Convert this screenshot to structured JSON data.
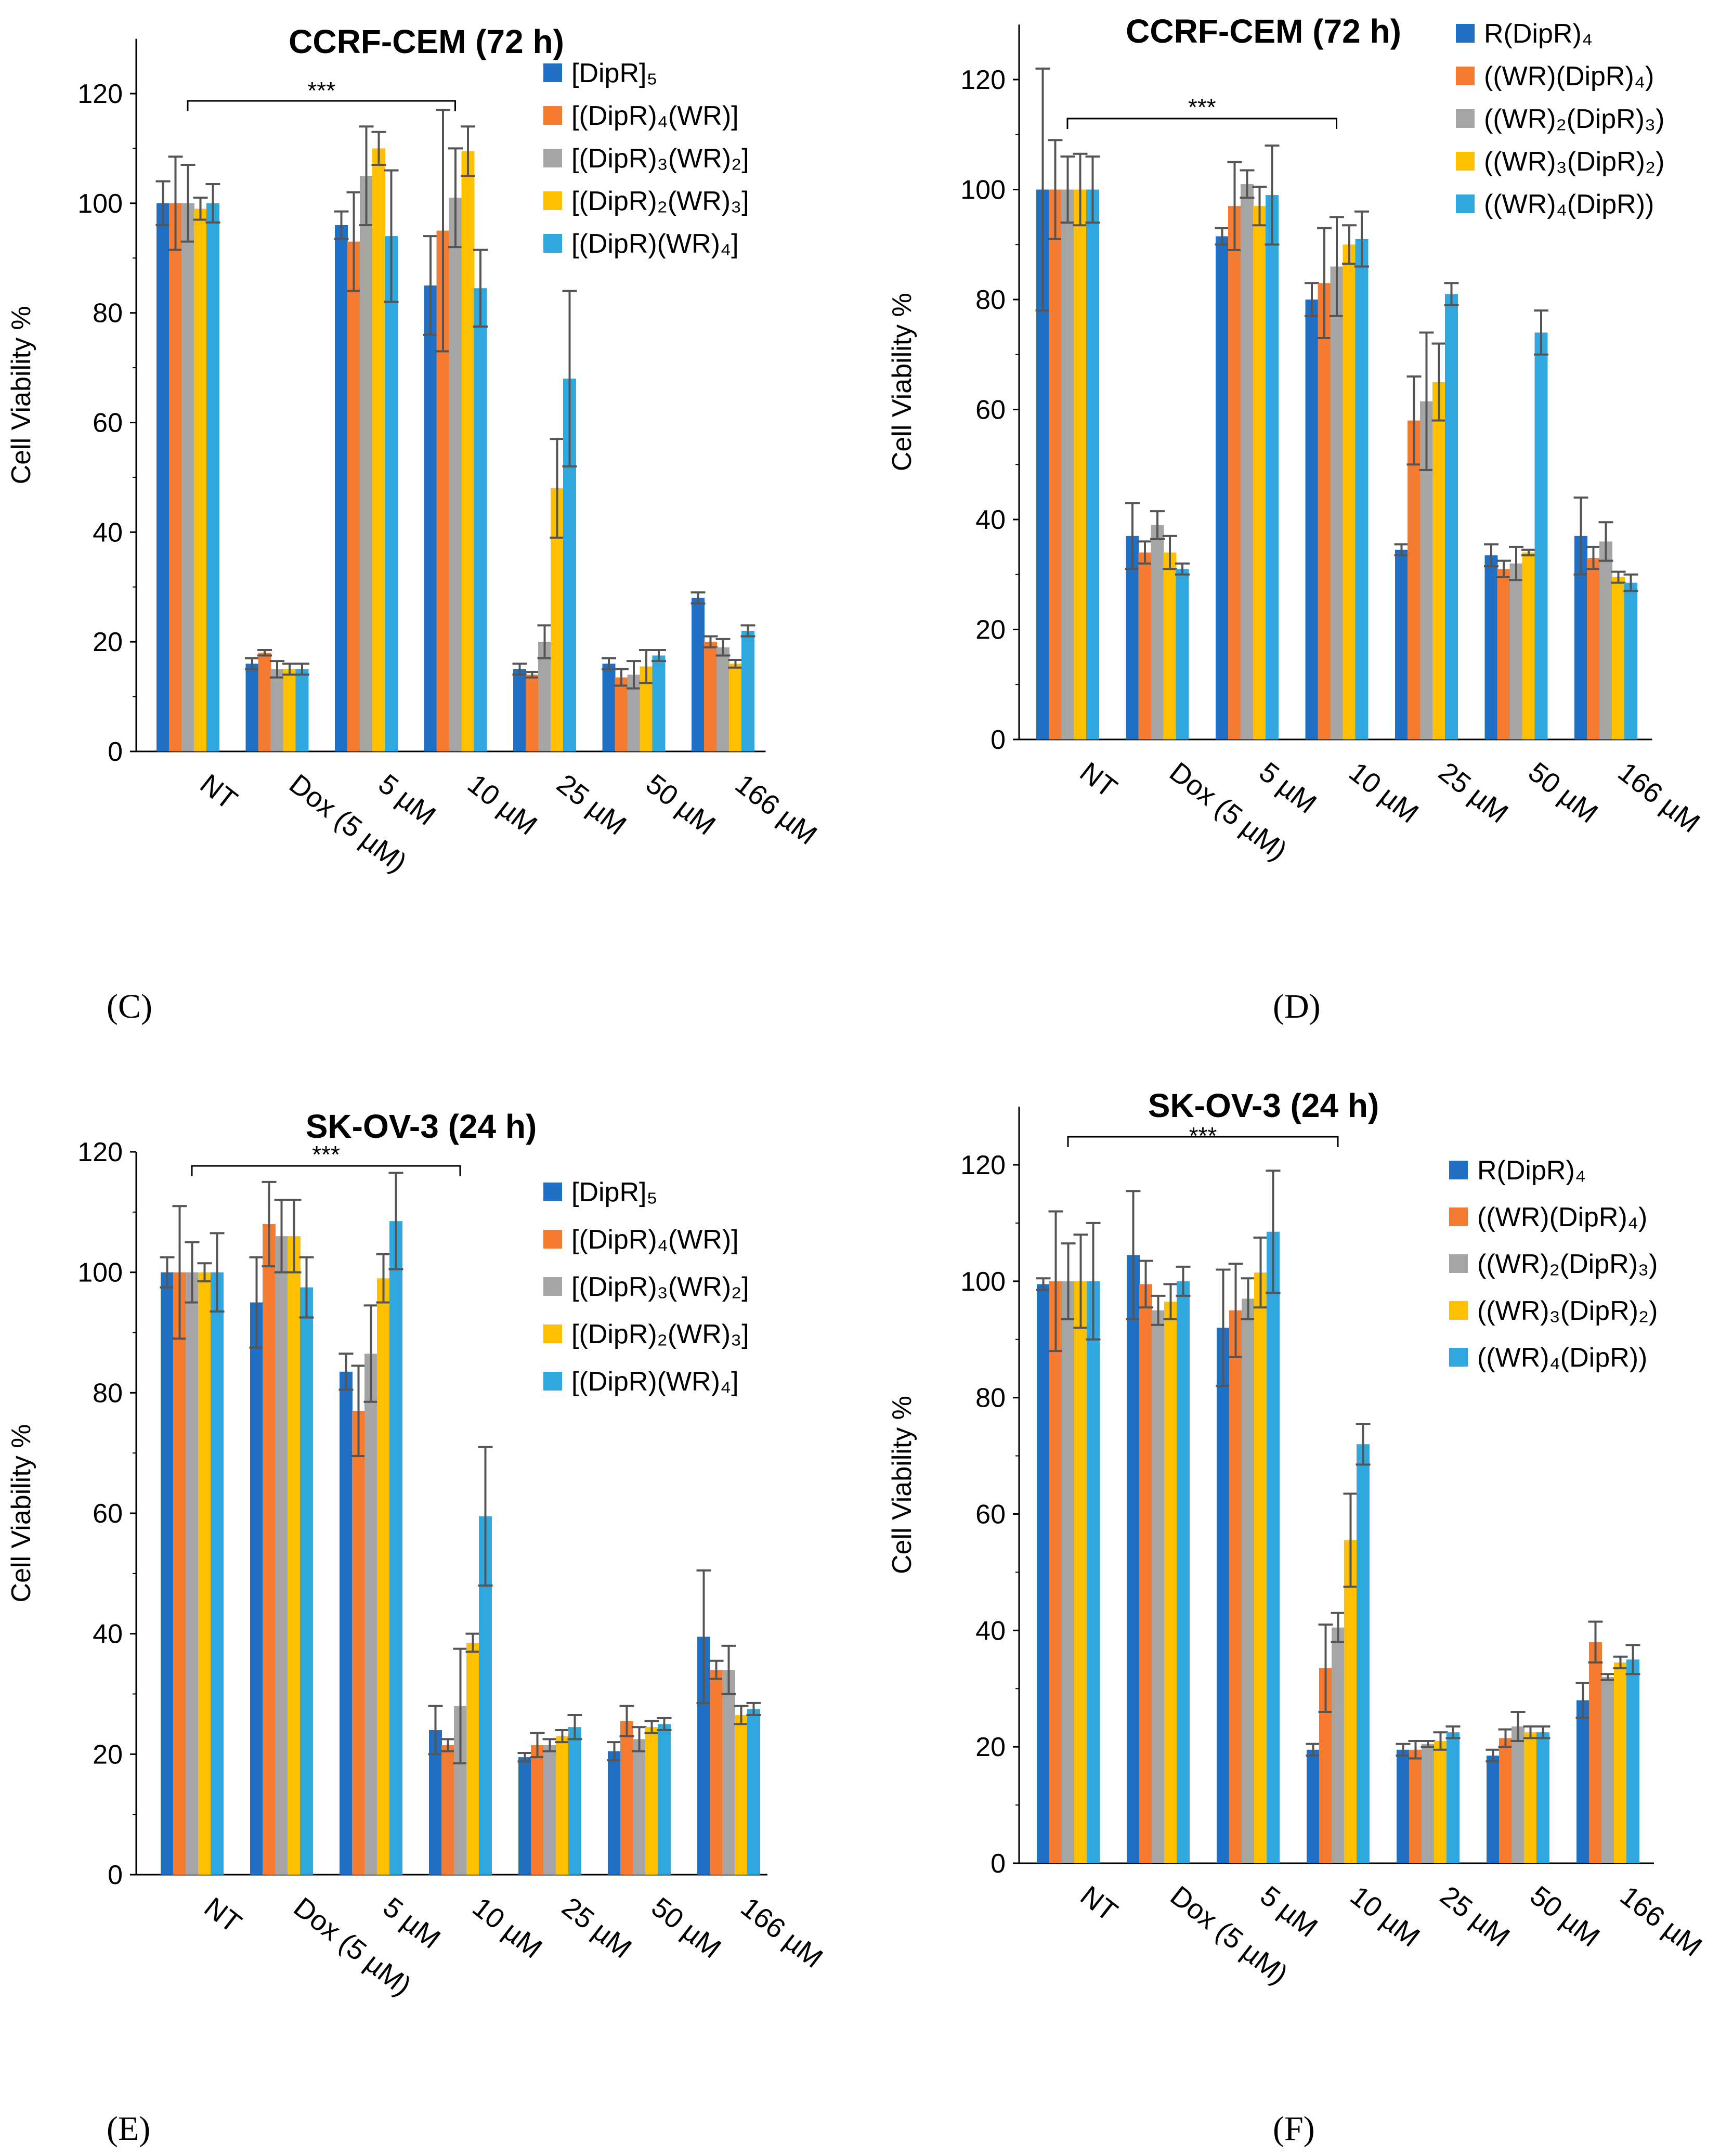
{
  "panels": [
    {
      "letter": "(C)",
      "title": "CCRF-CEM (72 h)"
    },
    {
      "letter": "(D)",
      "title": "CCRF-CEM (72 h)"
    },
    {
      "letter": "(E)",
      "title": "SK-OV-3 (24 h)"
    },
    {
      "letter": "(F)",
      "title": "SK-OV-3 (24 h)"
    }
  ],
  "colors": [
    "#1f6fc5",
    "#f47b30",
    "#a5a5a5",
    "#ffc000",
    "#2ea8df"
  ],
  "chart_data": [
    {
      "type": "bar",
      "title": "CCRF-CEM (72 h)",
      "ylabel": "Cell Viability %",
      "xlabel": "",
      "ylim": [
        0,
        130
      ],
      "yticks": [
        0,
        20,
        40,
        60,
        80,
        100,
        120
      ],
      "categories": [
        "NT",
        "Dox (5 µM)",
        "5 µM",
        "10 µM",
        "25 µM",
        "50 µM",
        "166 µM"
      ],
      "significance": {
        "label": "***",
        "from": "NT",
        "to": "10 µM"
      },
      "legend_position": "top-right",
      "series": [
        {
          "name": "[DipR]₅",
          "values": [
            100,
            16,
            96,
            85,
            15,
            16,
            28
          ],
          "errors": [
            4,
            1,
            2.5,
            9,
            1,
            1,
            1
          ]
        },
        {
          "name": "[(DipR)₄(WR)]",
          "values": [
            100,
            18,
            93,
            95,
            14,
            13.5,
            20
          ],
          "errors": [
            8.5,
            0.5,
            9,
            22,
            0.5,
            1.5,
            1
          ]
        },
        {
          "name": "[(DipR)₃(WR)₂]",
          "values": [
            100,
            15,
            105,
            101,
            20,
            14,
            19
          ],
          "errors": [
            7,
            1.5,
            9,
            9,
            3,
            2.5,
            1.5
          ]
        },
        {
          "name": "[(DipR)₂(WR)₃]",
          "values": [
            99,
            15,
            110,
            109.5,
            48,
            15.5,
            16
          ],
          "errors": [
            2,
            1,
            3,
            4.5,
            9,
            3,
            0.7
          ]
        },
        {
          "name": "[(DipR)(WR)₄]",
          "values": [
            100,
            15,
            94,
            84.5,
            68,
            17.5,
            22
          ],
          "errors": [
            3.5,
            1,
            12,
            7,
            16,
            1,
            1
          ]
        }
      ]
    },
    {
      "type": "bar",
      "title": "CCRF-CEM (72 h)",
      "ylabel": "Cell Viability %",
      "xlabel": "",
      "ylim": [
        0,
        130
      ],
      "yticks": [
        0,
        20,
        40,
        60,
        80,
        100,
        120
      ],
      "categories": [
        "NT",
        "Dox (5 µM)",
        "5 µM",
        "10 µM",
        "25 µM",
        "50 µM",
        "166 µM"
      ],
      "significance": {
        "label": "***",
        "from": "NT",
        "to": "10 µM"
      },
      "legend_position": "top-right",
      "series": [
        {
          "name": "R(DipR)₄",
          "values": [
            100,
            37,
            91.5,
            80,
            34.5,
            33.5,
            37
          ],
          "errors": [
            22,
            6,
            1.5,
            3,
            1,
            2,
            7
          ]
        },
        {
          "name": "((WR)(DipR)₄)",
          "values": [
            100,
            34,
            97,
            83,
            58,
            31,
            33
          ],
          "errors": [
            9,
            2,
            8,
            10,
            8,
            1.5,
            2
          ]
        },
        {
          "name": "((WR)₂(DipR)₃)",
          "values": [
            100,
            39,
            101,
            86,
            61.5,
            32,
            36
          ],
          "errors": [
            6,
            2.5,
            2.5,
            9,
            12.5,
            3,
            3.5
          ]
        },
        {
          "name": "((WR)₃(DipR)₂)",
          "values": [
            100,
            34,
            97,
            90,
            65,
            34,
            29.5
          ],
          "errors": [
            6.5,
            3,
            3.5,
            3.5,
            7,
            0.5,
            1
          ]
        },
        {
          "name": "((WR)₄(DipR))",
          "values": [
            100,
            31,
            99,
            91,
            81,
            74,
            28.5
          ],
          "errors": [
            6,
            1,
            9,
            5,
            2,
            4,
            1.5
          ]
        }
      ]
    },
    {
      "type": "bar",
      "title": "SK-OV-3 (24 h)",
      "ylabel": "Cell Viability %",
      "xlabel": "",
      "ylim": [
        0,
        120
      ],
      "yticks": [
        0,
        20,
        40,
        60,
        80,
        100,
        120
      ],
      "categories": [
        "NT",
        "Dox (5 µM)",
        "5 µM",
        "10 µM",
        "25 µM",
        "50 µM",
        "166 µM"
      ],
      "significance": {
        "label": "***",
        "from": "NT",
        "to": "10 µM"
      },
      "legend_position": "right",
      "series": [
        {
          "name": "[DipR]₅",
          "values": [
            100,
            95,
            83.5,
            24,
            19.5,
            20.5,
            39.5
          ],
          "errors": [
            2.5,
            7.5,
            3,
            4,
            0.7,
            1.5,
            11
          ]
        },
        {
          "name": "[(DipR)₄(WR)]",
          "values": [
            100,
            108,
            77,
            21.5,
            21.5,
            25.5,
            34
          ],
          "errors": [
            11,
            7,
            7.5,
            1,
            2,
            2.5,
            1.5
          ]
        },
        {
          "name": "[(DipR)₃(WR)₂]",
          "values": [
            100,
            106,
            86.5,
            28,
            21.5,
            22.5,
            34
          ],
          "errors": [
            5,
            6,
            8,
            9.5,
            1,
            2,
            4
          ]
        },
        {
          "name": "[(DipR)₂(WR)₃]",
          "values": [
            100,
            106,
            99,
            38.5,
            23,
            24.5,
            26.5
          ],
          "errors": [
            1.5,
            6,
            4,
            1.5,
            1,
            1,
            1.5
          ]
        },
        {
          "name": "[(DipR)(WR)₄]",
          "values": [
            100,
            97.5,
            108.5,
            59.5,
            24.5,
            25,
            27.5
          ],
          "errors": [
            6.5,
            5,
            8,
            11.5,
            2,
            1,
            1
          ]
        }
      ]
    },
    {
      "type": "bar",
      "title": "SK-OV-3 (24 h)",
      "ylabel": "Cell Viability %",
      "xlabel": "",
      "ylim": [
        0,
        130
      ],
      "yticks": [
        0,
        20,
        40,
        60,
        80,
        100,
        120
      ],
      "categories": [
        "NT",
        "Dox (5 µM)",
        "5 µM",
        "10 µM",
        "25 µM",
        "50 µM",
        "166 µM"
      ],
      "significance": {
        "label": "***",
        "from": "NT",
        "to": "10 µM"
      },
      "legend_position": "right",
      "series": [
        {
          "name": "R(DipR)₄",
          "values": [
            99.5,
            104.5,
            92,
            19.5,
            19.5,
            18.5,
            28
          ],
          "errors": [
            1,
            11,
            10,
            1,
            1,
            1,
            3
          ]
        },
        {
          "name": "((WR)(DipR)₄)",
          "values": [
            100,
            99.5,
            95,
            33.5,
            19.5,
            21.5,
            38
          ],
          "errors": [
            12,
            4,
            8,
            7.5,
            1.5,
            1.5,
            3.5
          ]
        },
        {
          "name": "((WR)₂(DipR)₃)",
          "values": [
            100,
            95,
            97,
            40.5,
            20.5,
            23.5,
            32
          ],
          "errors": [
            6.5,
            2.5,
            3.5,
            2.5,
            0.5,
            2.5,
            0.5
          ]
        },
        {
          "name": "((WR)₃(DipR)₂)",
          "values": [
            100,
            96.5,
            101.5,
            55.5,
            21,
            22.5,
            34.5
          ],
          "errors": [
            8,
            3,
            6,
            8,
            1.5,
            1,
            1
          ]
        },
        {
          "name": "((WR)₄(DipR))",
          "values": [
            100,
            100,
            108.5,
            72,
            22.5,
            22.5,
            35
          ],
          "errors": [
            10,
            2.5,
            10.5,
            3.5,
            1,
            1,
            2.5
          ]
        }
      ]
    }
  ]
}
